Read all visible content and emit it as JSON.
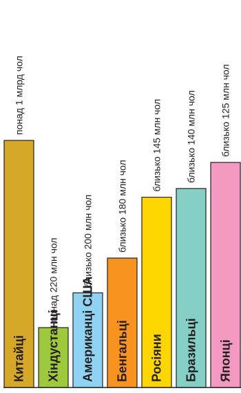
{
  "chart_data": {
    "type": "bar",
    "orientation": "vertical-bars-rotated-labels",
    "categories": [
      "Китайці",
      "Хіндустанці",
      "Американці США",
      "Бенгальці",
      "Росіяни",
      "Бразильці",
      "Японці"
    ],
    "population_labels": [
      "понад 1 млрд чол",
      "понад  220 млн чол",
      "близько 200 млн чол",
      "близько 180 млн чол",
      "близько 145 млн чол",
      "близько 140 млн чол",
      "близько 125 млн чол"
    ],
    "values": [
      1000,
      220,
      200,
      180,
      145,
      140,
      125
    ],
    "colors": [
      "#d6a82a",
      "#9fc93c",
      "#8fd2f2",
      "#f7931e",
      "#ffd500",
      "#86cfc6",
      "#f49ac1"
    ],
    "title": "",
    "xlabel": "",
    "ylabel": "",
    "legend": "none",
    "grid": false
  }
}
